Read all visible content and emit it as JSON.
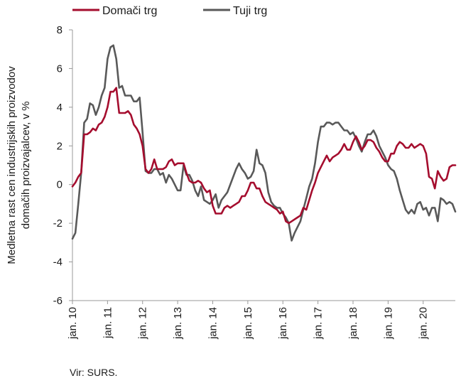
{
  "chart_data": {
    "type": "line",
    "ylabel_lines": [
      "Medletna rast cen industrijskih proizvodov",
      "domačih proizvajalcev, v %"
    ],
    "ylim": [
      -6,
      8
    ],
    "yticks": [
      -6,
      -4,
      -2,
      0,
      2,
      4,
      6,
      8
    ],
    "x_start_index": 0,
    "x_end_index": 131,
    "xticks": [
      {
        "index": 0,
        "label": "jan. 10"
      },
      {
        "index": 12,
        "label": "jan. 11"
      },
      {
        "index": 24,
        "label": "jan. 12"
      },
      {
        "index": 36,
        "label": "jan. 13"
      },
      {
        "index": 48,
        "label": "jan. 14"
      },
      {
        "index": 60,
        "label": "jan. 15"
      },
      {
        "index": 72,
        "label": "jan. 16"
      },
      {
        "index": 84,
        "label": "jan. 17"
      },
      {
        "index": 96,
        "label": "jan. 18"
      },
      {
        "index": 108,
        "label": "jan. 19"
      },
      {
        "index": 120,
        "label": "jan. 20"
      }
    ],
    "series": [
      {
        "name": "Domači trg",
        "color": "#a50d2e",
        "values": [
          -0.1,
          0.1,
          0.4,
          0.6,
          2.6,
          2.6,
          2.7,
          2.9,
          2.8,
          3.1,
          3.2,
          3.5,
          4.0,
          4.8,
          4.8,
          5.0,
          3.7,
          3.7,
          3.7,
          3.8,
          3.6,
          3.1,
          2.9,
          2.6,
          2.0,
          0.8,
          0.6,
          0.8,
          1.3,
          0.8,
          0.8,
          0.8,
          0.9,
          1.2,
          1.3,
          1.0,
          1.1,
          1.1,
          1.1,
          0.6,
          0.2,
          0.1,
          0.1,
          0.2,
          0.1,
          -0.2,
          -0.4,
          -0.3,
          -1.1,
          -1.5,
          -1.5,
          -1.5,
          -1.2,
          -1.1,
          -1.2,
          -1.1,
          -1.0,
          -0.9,
          -0.6,
          -0.6,
          -0.3,
          0.1,
          0.1,
          -0.2,
          -0.2,
          -0.6,
          -0.9,
          -1.0,
          -1.1,
          -1.2,
          -1.3,
          -1.5,
          -1.4,
          -1.9,
          -2.0,
          -1.9,
          -1.8,
          -1.7,
          -1.6,
          -1.2,
          -1.3,
          -0.8,
          -0.3,
          0.1,
          0.6,
          0.9,
          1.2,
          1.5,
          1.2,
          1.4,
          1.5,
          1.6,
          1.8,
          2.1,
          1.8,
          1.8,
          2.2,
          2.5,
          2.2,
          1.8,
          2.0,
          2.3,
          2.3,
          2.2,
          1.9,
          1.7,
          1.4,
          1.2,
          1.2,
          1.6,
          1.6,
          2.0,
          2.2,
          2.1,
          1.9,
          1.9,
          2.1,
          1.9,
          2.0,
          2.1,
          2.0,
          1.6,
          0.4,
          0.3,
          -0.2,
          0.7,
          0.4,
          0.2,
          0.3,
          0.9,
          1.0,
          1.0
        ]
      },
      {
        "name": "Tuji trg",
        "color": "#595959",
        "values": [
          -2.8,
          -2.5,
          -1.0,
          0.6,
          3.2,
          3.4,
          4.2,
          4.1,
          3.6,
          4.0,
          4.6,
          5.0,
          6.5,
          7.1,
          7.2,
          6.5,
          5.0,
          5.1,
          4.6,
          4.6,
          4.6,
          4.3,
          4.3,
          4.5,
          2.7,
          0.7,
          0.6,
          0.6,
          0.8,
          0.8,
          0.5,
          0.6,
          0.1,
          0.5,
          0.3,
          0.0,
          -0.3,
          -0.3,
          1.0,
          0.5,
          0.5,
          0.2,
          -0.3,
          -0.6,
          -0.1,
          -0.8,
          -0.9,
          -1.0,
          -0.8,
          -0.5,
          -1.2,
          -0.8,
          -0.6,
          -0.4,
          0.0,
          0.4,
          0.8,
          1.1,
          0.8,
          0.6,
          0.3,
          0.4,
          0.7,
          1.8,
          1.1,
          1.0,
          0.6,
          -0.4,
          -0.9,
          -1.1,
          -1.2,
          -1.2,
          -1.5,
          -1.7,
          -2.0,
          -2.9,
          -2.5,
          -2.2,
          -1.9,
          -1.3,
          -0.7,
          -0.1,
          0.3,
          1.1,
          2.2,
          3.0,
          3.0,
          3.2,
          3.2,
          3.1,
          3.2,
          3.2,
          3.0,
          2.8,
          2.8,
          2.6,
          2.7,
          2.4,
          2.0,
          1.7,
          2.2,
          2.6,
          2.6,
          2.8,
          2.5,
          2.0,
          1.7,
          1.4,
          1.0,
          0.8,
          0.7,
          0.3,
          -0.3,
          -0.8,
          -1.3,
          -1.5,
          -1.3,
          -1.5,
          -1.0,
          -0.9,
          -1.3,
          -1.2,
          -1.6,
          -1.2,
          -1.2,
          -1.9,
          -0.7,
          -0.8,
          -1.0,
          -0.9,
          -1.0,
          -1.4
        ]
      }
    ]
  },
  "source": "Vir: SURS."
}
